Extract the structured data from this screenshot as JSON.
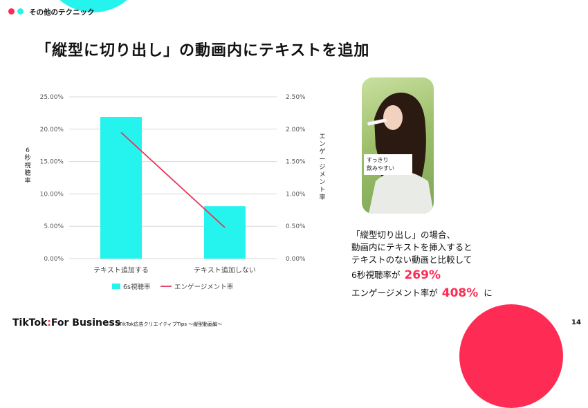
{
  "header": {
    "section_label": "その他のテクニック",
    "page_title": "「縦型に切り出し」の動画内にテキストを追加"
  },
  "colors": {
    "accent_pink": "#fe2c55",
    "accent_cyan": "#25f4ee",
    "bar": "#25f4ee",
    "line": "#e8345a",
    "highlight_text": "#fe2c55"
  },
  "chart_data": {
    "type": "bar",
    "categories": [
      "テキスト追加する",
      "テキスト追加しない"
    ],
    "series": [
      {
        "name": "6s視聴率",
        "type": "bar",
        "axis": "left",
        "values": [
          21.9,
          8.1
        ]
      },
      {
        "name": "エンゲージメント率",
        "type": "line",
        "axis": "right",
        "values": [
          1.95,
          0.48
        ]
      }
    ],
    "y_left": {
      "label": "6秒視聴率",
      "range": [
        0,
        25
      ],
      "ticks": [
        "0.00%",
        "5.00%",
        "10.00%",
        "15.00%",
        "20.00%",
        "25.00%"
      ]
    },
    "y_right": {
      "label": "エンゲージメント率",
      "range": [
        0,
        2.5
      ],
      "ticks": [
        "0.00%",
        "0.50%",
        "1.00%",
        "1.50%",
        "2.00%",
        "2.50%"
      ]
    },
    "grid": true,
    "legend_position": "bottom"
  },
  "photo": {
    "caption": "すっきり\n飲みやすい"
  },
  "summary": {
    "line1": "「縦型切り出し」の場合、",
    "line2": "動画内にテキストを挿入すると",
    "line3": "テキストのない動画と比較して",
    "stat1_prefix": "6秒視聴率が",
    "stat1_value": "269%",
    "stat2_prefix": "エンゲージメント率が",
    "stat2_value": "408%",
    "stat2_suffix": "に"
  },
  "footer": {
    "logo_main": "TikTok",
    "logo_sep": ":",
    "logo_sub": "For Business",
    "subtitle": "TikTok広告クリエイティブTips 〜縦型動画編〜",
    "page_number": "14"
  }
}
